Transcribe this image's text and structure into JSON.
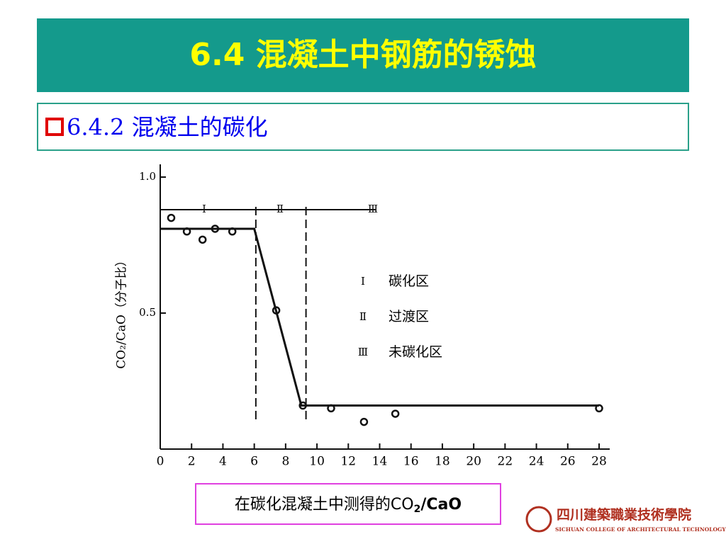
{
  "slide": {
    "title": "6.4  混凝土中钢筋的锈蚀",
    "section": "6.4.2 混凝土的碳化",
    "caption": [
      "在碳化混凝土中测得的CO",
      "2",
      "/CaO"
    ],
    "logo": {
      "name": "四川建築職業技術學院",
      "english": "SICHUAN COLLEGE OF ARCHITECTURAL TECHNOLOGY"
    }
  },
  "chart_data": {
    "type": "scatter",
    "y_label": "CO₂/CaO（分子比）",
    "xlim": [
      0,
      28
    ],
    "xticks": [
      0,
      2,
      4,
      6,
      8,
      10,
      12,
      14,
      16,
      18,
      20,
      22,
      24,
      26,
      28
    ],
    "ylim": [
      0,
      1
    ],
    "yticks": [
      {
        "value": 0.5,
        "label": "0.5"
      },
      {
        "value": 1,
        "label": "1.0"
      }
    ],
    "series": [
      {
        "type": "scatter",
        "color": "#111111",
        "x": [
          0.7,
          1.7,
          2.7,
          3.5,
          4.6,
          7.4,
          9.1,
          10.9,
          13,
          15,
          28
        ],
        "values": [
          0.85,
          0.8,
          0.77,
          0.81,
          0.8,
          0.51,
          0.16,
          0.15,
          0.1,
          0.13,
          0.15
        ]
      },
      {
        "type": "line",
        "color": "#111111",
        "x": [
          0,
          6,
          9,
          28
        ],
        "values": [
          0.81,
          0.81,
          0.16,
          0.16
        ]
      }
    ],
    "zone_boundaries": [
      6.1,
      9.3
    ],
    "zones": [
      {
        "label": "Ⅰ",
        "name": "碳化区"
      },
      {
        "label": "Ⅱ",
        "name": "过渡区"
      },
      {
        "label": "Ⅲ",
        "name": "未碳化区"
      }
    ]
  }
}
